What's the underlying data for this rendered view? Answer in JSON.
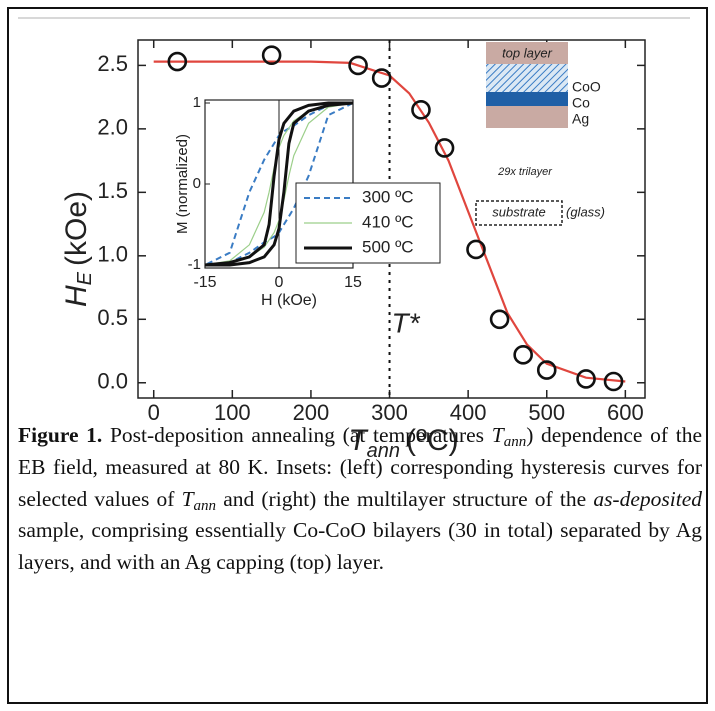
{
  "chart_data": {
    "type": "scatter",
    "xlabel": {
      "main": "T",
      "sub": "ann",
      "unit": "(ºC)"
    },
    "ylabel": {
      "main": "H",
      "sub": "E",
      "unit": "(kOe)"
    },
    "xlim": [
      -20,
      625
    ],
    "ylim": [
      -0.12,
      2.7
    ],
    "xticks": [
      0,
      100,
      200,
      300,
      400,
      500,
      600
    ],
    "yticks": [
      {
        "value": 0,
        "label": "0.0"
      },
      {
        "value": 0.5,
        "label": "0.5"
      },
      {
        "value": 1,
        "label": "1.0"
      },
      {
        "value": 1.5,
        "label": "1.5"
      },
      {
        "value": 2,
        "label": "2.0"
      },
      {
        "value": 2.5,
        "label": "2.5"
      }
    ],
    "points": {
      "x": [
        30,
        150,
        260,
        290,
        340,
        370,
        410,
        440,
        470,
        500,
        550,
        585
      ],
      "values": [
        2.53,
        2.58,
        2.5,
        2.4,
        2.15,
        1.85,
        1.05,
        0.5,
        0.22,
        0.1,
        0.03,
        0.01
      ],
      "color": "#111111"
    },
    "fit": {
      "x": [
        0,
        50,
        100,
        150,
        200,
        250,
        300,
        325,
        350,
        375,
        400,
        425,
        450,
        475,
        500,
        550,
        600
      ],
      "values": [
        2.53,
        2.53,
        2.53,
        2.53,
        2.53,
        2.52,
        2.42,
        2.28,
        2.05,
        1.75,
        1.35,
        0.95,
        0.55,
        0.3,
        0.15,
        0.04,
        0.01
      ],
      "color": "#e0463e"
    },
    "vline": {
      "x": 300,
      "label": "T*"
    },
    "inset": {
      "type": "line",
      "xlabel": "H (kOe)",
      "ylabel": "M (normalized)",
      "xlim": [
        -15,
        15
      ],
      "ylim": [
        -1,
        1
      ],
      "xticks": [
        -15,
        0,
        15
      ],
      "yticks": [
        -1,
        0,
        1
      ],
      "x": [
        15,
        10,
        6,
        3,
        1,
        0,
        -1,
        -2,
        -3,
        -6,
        -10,
        -15,
        -15,
        -10,
        -6,
        -3,
        -1,
        0,
        1,
        2,
        3,
        6,
        10,
        15
      ],
      "series": [
        {
          "name": "300 ºC",
          "color": "#3a7cc4",
          "style": "dashed",
          "values": [
            1,
            0.97,
            0.85,
            0.72,
            0.65,
            0.6,
            0.5,
            0.4,
            0.3,
            -0.1,
            -0.85,
            -1,
            -1,
            -0.97,
            -0.85,
            -0.72,
            -0.65,
            -0.6,
            -0.5,
            -0.4,
            -0.3,
            0.1,
            0.85,
            1
          ]
        },
        {
          "name": "410 ºC",
          "color": "#9ccf8a",
          "style": "thin",
          "values": [
            1,
            0.98,
            0.9,
            0.78,
            0.6,
            0.45,
            0.2,
            -0.1,
            -0.35,
            -0.75,
            -0.95,
            -1,
            -1,
            -0.98,
            -0.9,
            -0.78,
            -0.6,
            -0.45,
            -0.2,
            0.1,
            0.35,
            0.75,
            0.95,
            1
          ]
        },
        {
          "name": "500 ºC",
          "color": "#111111",
          "style": "thick",
          "values": [
            1,
            1,
            0.97,
            0.9,
            0.75,
            0.55,
            0.1,
            -0.5,
            -0.75,
            -0.9,
            -0.97,
            -1,
            -1,
            -1,
            -0.97,
            -0.9,
            -0.75,
            -0.55,
            -0.1,
            0.5,
            0.75,
            0.9,
            0.97,
            1
          ]
        }
      ]
    },
    "structure": {
      "layers": [
        "top layer",
        "CoO",
        "Co",
        "Ag"
      ],
      "repeat": "29x trilayer",
      "substrate": "substrate",
      "substrate_note": "(glass)"
    }
  },
  "caption": {
    "segments": [
      {
        "text": "Figure 1.",
        "bold": true
      },
      {
        "text": " Post-deposition annealing (at temperatures "
      },
      {
        "text": "T",
        "italic": true
      },
      {
        "text": "ann",
        "italic": true,
        "sub": true
      },
      {
        "text": ") dependence of the EB field, measured at 80 K. Insets: (left) corresponding hysteresis curves for selected values of "
      },
      {
        "text": "T",
        "italic": true
      },
      {
        "text": "ann",
        "italic": true,
        "sub": true
      },
      {
        "text": " and (right) the multilayer structure of the "
      },
      {
        "text": "as-deposited",
        "italic": true
      },
      {
        "text": " sample, comprising essentially Co-CoO bilayers (30 in total) separated by Ag layers, and with an Ag capping (top) layer."
      }
    ]
  }
}
